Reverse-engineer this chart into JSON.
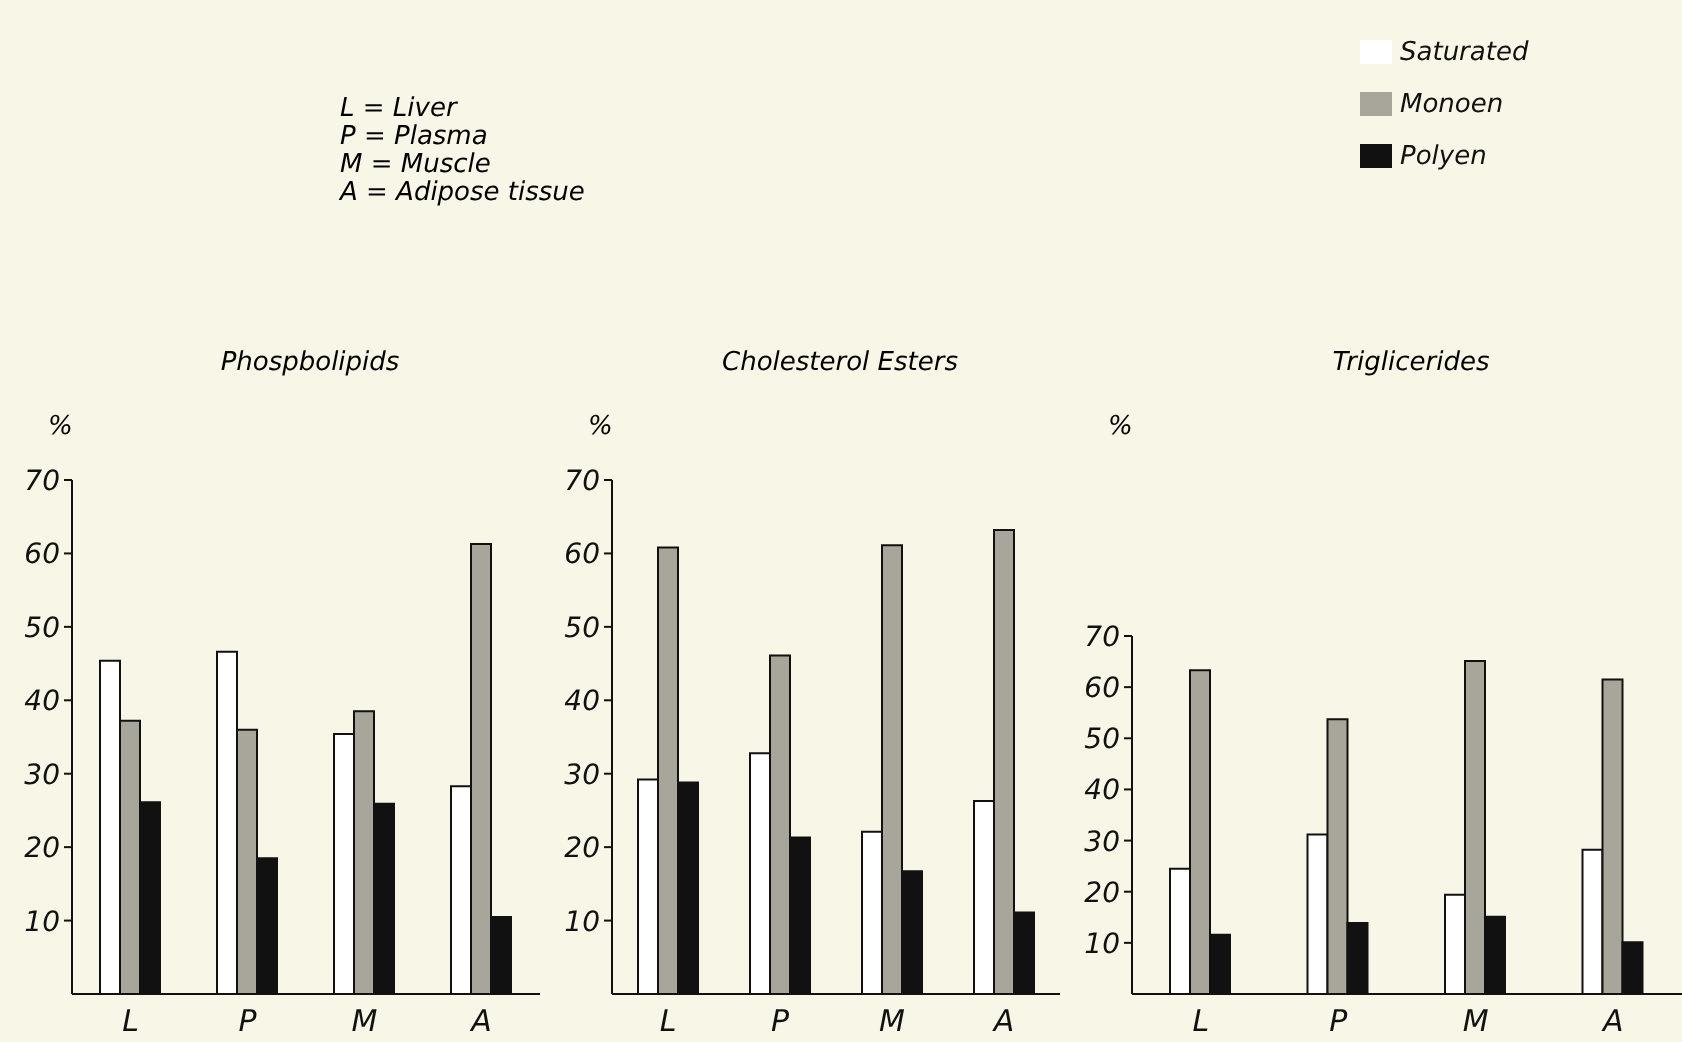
{
  "chart_data": [
    {
      "type": "bar",
      "title": "Phospbolipids",
      "ylabel": "%",
      "categories": [
        "L",
        "P",
        "M",
        "A"
      ],
      "ylim": [
        0,
        70
      ],
      "yticks": [
        10,
        20,
        30,
        40,
        50,
        60,
        70
      ],
      "annotations": [
        "L = Liver",
        "P = Plasma",
        "M = Muscle",
        "A = Adipose tissue"
      ],
      "series": [
        {
          "color": "#ffffff",
          "values": [
            45.4,
            46.6,
            35.4,
            28.3
          ]
        },
        {
          "color": "#a8a69a",
          "values": [
            37.2,
            36.0,
            38.5,
            61.3
          ]
        },
        {
          "color": "#111111",
          "values": [
            26.1,
            18.5,
            25.9,
            10.5
          ]
        }
      ]
    },
    {
      "type": "bar",
      "title": "Cholesterol Esters",
      "ylabel": "%",
      "categories": [
        "L",
        "P",
        "M",
        "A"
      ],
      "ylim": [
        0,
        70
      ],
      "yticks": [
        10,
        20,
        30,
        40,
        50,
        60,
        70
      ],
      "series": [
        {
          "color": "#ffffff",
          "values": [
            29.2,
            32.8,
            22.1,
            26.3
          ]
        },
        {
          "color": "#a8a69a",
          "values": [
            60.8,
            46.1,
            61.1,
            63.2
          ]
        },
        {
          "color": "#111111",
          "values": [
            28.8,
            21.3,
            16.7,
            11.1
          ]
        }
      ]
    },
    {
      "type": "bar",
      "title": "Triglicerides",
      "ylabel": "%",
      "categories": [
        "L",
        "P",
        "M",
        "A"
      ],
      "ylim": [
        0,
        70
      ],
      "yticks": [
        10,
        20,
        30,
        40,
        50,
        60,
        70
      ],
      "legend": "top right",
      "series": [
        {
          "name": "Saturated",
          "color": "#ffffff",
          "values": [
            24.5,
            31.2,
            19.4,
            28.2
          ]
        },
        {
          "name": "Monoen",
          "color": "#a8a69a",
          "values": [
            63.3,
            53.7,
            65.1,
            61.5
          ]
        },
        {
          "name": "Polyen",
          "color": "#111111",
          "values": [
            11.6,
            13.9,
            15.1,
            10.1
          ]
        }
      ]
    }
  ]
}
